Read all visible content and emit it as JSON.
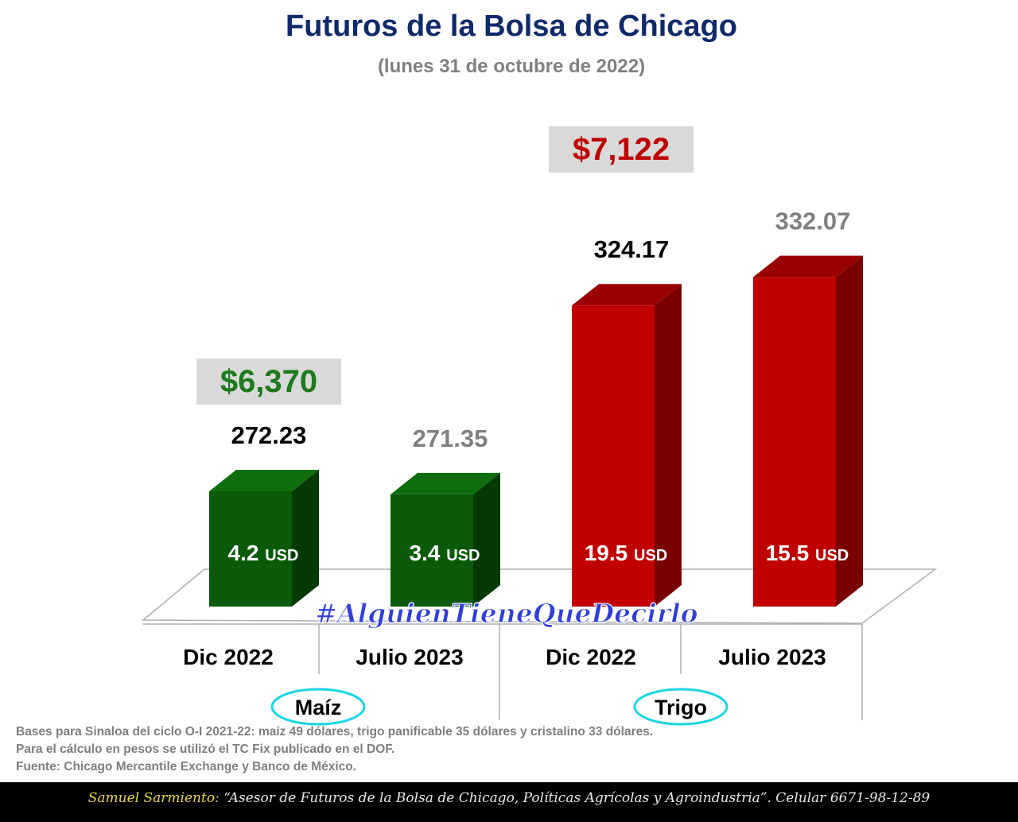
{
  "title": "Futuros de la Bolsa de Chicago",
  "subtitle": "(lunes 31 de octubre de 2022)",
  "colors": {
    "maiz_front": "#0a5a0a",
    "maiz_side": "#053a05",
    "maiz_top": "#0e6e0e",
    "trigo_front": "#c00000",
    "trigo_side": "#7a0000",
    "trigo_top": "#9a0000",
    "price_maiz": "#1e7a1e",
    "price_trigo": "#c00000",
    "label_black": "#000000",
    "label_grey": "#808080"
  },
  "chart_data": {
    "type": "bar",
    "title": "Futuros de la Bolsa de Chicago",
    "groups": [
      "Maíz",
      "Trigo"
    ],
    "categories": [
      "Dic 2022",
      "Julio 2023",
      "Dic 2022",
      "Julio 2023"
    ],
    "values": [
      272.23,
      271.35,
      324.17,
      332.07
    ],
    "value_labels": [
      "272.23",
      "271.35",
      "324.17",
      "332.07"
    ],
    "bases": [
      "4.2",
      "3.4",
      "19.5",
      "15.5"
    ],
    "base_unit": "USD",
    "pesos": [
      {
        "label": "$6,370",
        "group": "Maíz"
      },
      {
        "label": "$7,122",
        "group": "Trigo"
      }
    ],
    "ylim": [
      240,
      340
    ],
    "grid": false
  },
  "watermark": "#AlguienTieneQueDecirlo",
  "notes": [
    "Bases para Sinaloa del ciclo O-I 2021-22: maíz 49 dólares, trigo panificable 35 dólares y cristalino 33 dólares.",
    "Para el cálculo en pesos se utilizó el TC Fix publicado en el DOF.",
    "Fuente: Chicago Mercantile Exchange y Banco de México."
  ],
  "footer": {
    "name": "Samuel Sarmiento:",
    "text": "“Asesor de Futuros de la Bolsa de Chicago, Políticas Agrícolas y Agroindustria”. Celular 6671-98-12-89"
  }
}
